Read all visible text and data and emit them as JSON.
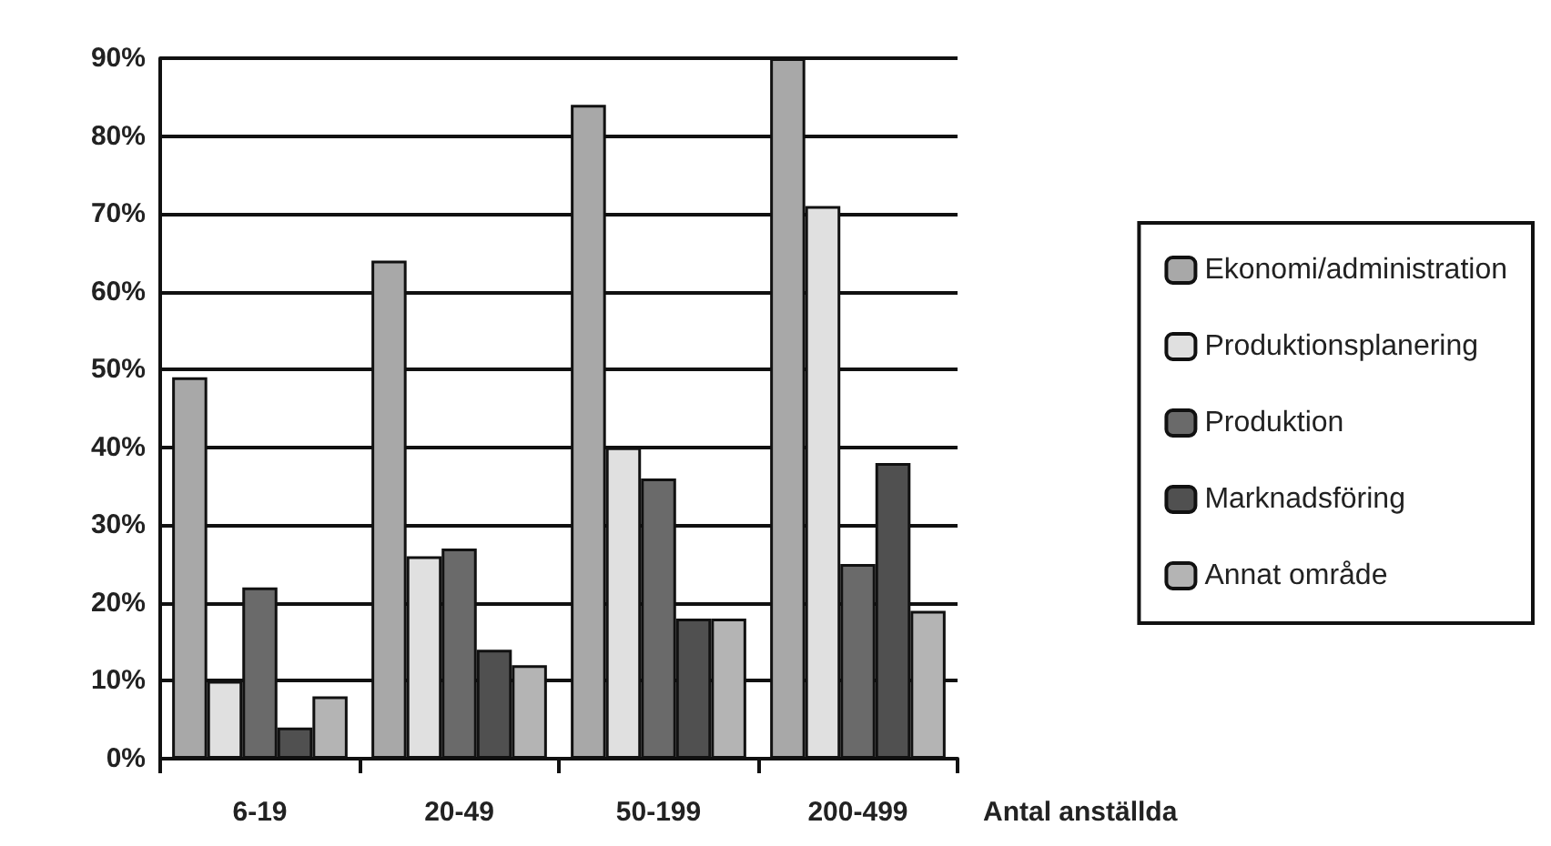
{
  "chart_data": {
    "type": "bar",
    "xlabel": "Antal anställda",
    "categories": [
      "6-19",
      "20-49",
      "50-199",
      "200-499"
    ],
    "series": [
      {
        "name": "Ekonomi/administration",
        "color": "#a8a8a8",
        "values": [
          49,
          64,
          84,
          90
        ]
      },
      {
        "name": "Produktionsplanering",
        "color": "#e0e0e0",
        "values": [
          10,
          26,
          40,
          71
        ]
      },
      {
        "name": "Produktion",
        "color": "#6a6a6a",
        "values": [
          22,
          27,
          36,
          25
        ]
      },
      {
        "name": "Marknadsföring",
        "color": "#505050",
        "values": [
          4,
          14,
          18,
          38
        ]
      },
      {
        "name": "Annat område",
        "color": "#b4b4b4",
        "values": [
          8,
          12,
          18,
          19
        ]
      }
    ],
    "ylim": [
      0,
      90
    ],
    "yticks": [
      {
        "value": 0,
        "label": "0%"
      },
      {
        "value": 10,
        "label": "10%"
      },
      {
        "value": 20,
        "label": "20%"
      },
      {
        "value": 30,
        "label": "30%"
      },
      {
        "value": 40,
        "label": "40%"
      },
      {
        "value": 50,
        "label": "50%"
      },
      {
        "value": 60,
        "label": "60%"
      },
      {
        "value": 70,
        "label": "70%"
      },
      {
        "value": 80,
        "label": "80%"
      },
      {
        "value": 90,
        "label": "90%"
      }
    ],
    "grid": "y",
    "legend": "right"
  }
}
